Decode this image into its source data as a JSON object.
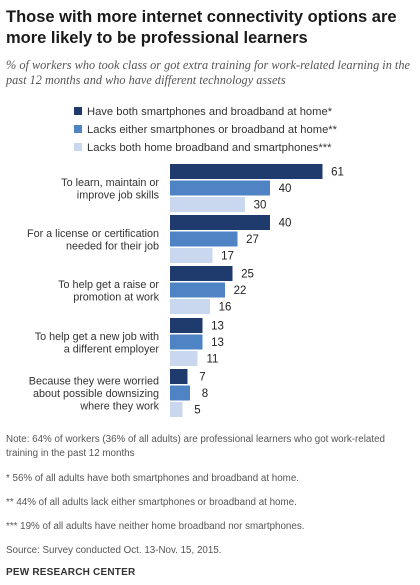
{
  "header": {
    "title": "Those with more internet connectivity options are more likely to be professional learners",
    "subtitle": "% of workers who took class or got extra training for work-related learning in the past 12 months and who have different technology assets"
  },
  "colors": {
    "series": [
      "#1f3b6e",
      "#4e84c4",
      "#c9d8ee"
    ],
    "text": "#333333"
  },
  "chart_data": {
    "type": "bar",
    "orientation": "horizontal",
    "title": "Those with more internet connectivity options are more likely to be professional learners",
    "xlim": [
      0,
      70
    ],
    "grid": false,
    "legend_placement": "top",
    "categories": [
      "To learn, maintain or improve job skills",
      "For a license or certification needed for their job",
      "To help get a raise or promotion at work",
      "To help get a new job with a different employer",
      "Because they were worried about possible downsizing where they work"
    ],
    "category_lines": [
      [
        "To learn, maintain or",
        "improve job skills"
      ],
      [
        "For a license or certification",
        "needed for their job"
      ],
      [
        "To help get a raise or",
        "promotion at work"
      ],
      [
        "To help get a new job with",
        "a different employer"
      ],
      [
        "Because they were worried",
        "about possible downsizing",
        "where they work"
      ]
    ],
    "series": [
      {
        "name": "Have both smartphones and broadband at home*",
        "values": [
          61,
          40,
          25,
          13,
          7
        ]
      },
      {
        "name": "Lacks either smartphones or broadband at home**",
        "values": [
          40,
          27,
          22,
          13,
          8
        ]
      },
      {
        "name": "Lacks both home broadband and smartphones***",
        "values": [
          30,
          17,
          16,
          11,
          5
        ]
      }
    ]
  },
  "notes": [
    "Note: 64% of workers (36% of all adults) are professional learners who got work-related training in the past 12 months",
    "* 56% of all adults have both smartphones and broadband at home.",
    "** 44% of all adults lack either smartphones or broadband at home.",
    "*** 19% of all adults have neither home broadband nor smartphones.",
    "Source: Survey conducted Oct. 13-Nov. 15, 2015."
  ],
  "footer": {
    "logo_text": "PEW RESEARCH CENTER"
  }
}
